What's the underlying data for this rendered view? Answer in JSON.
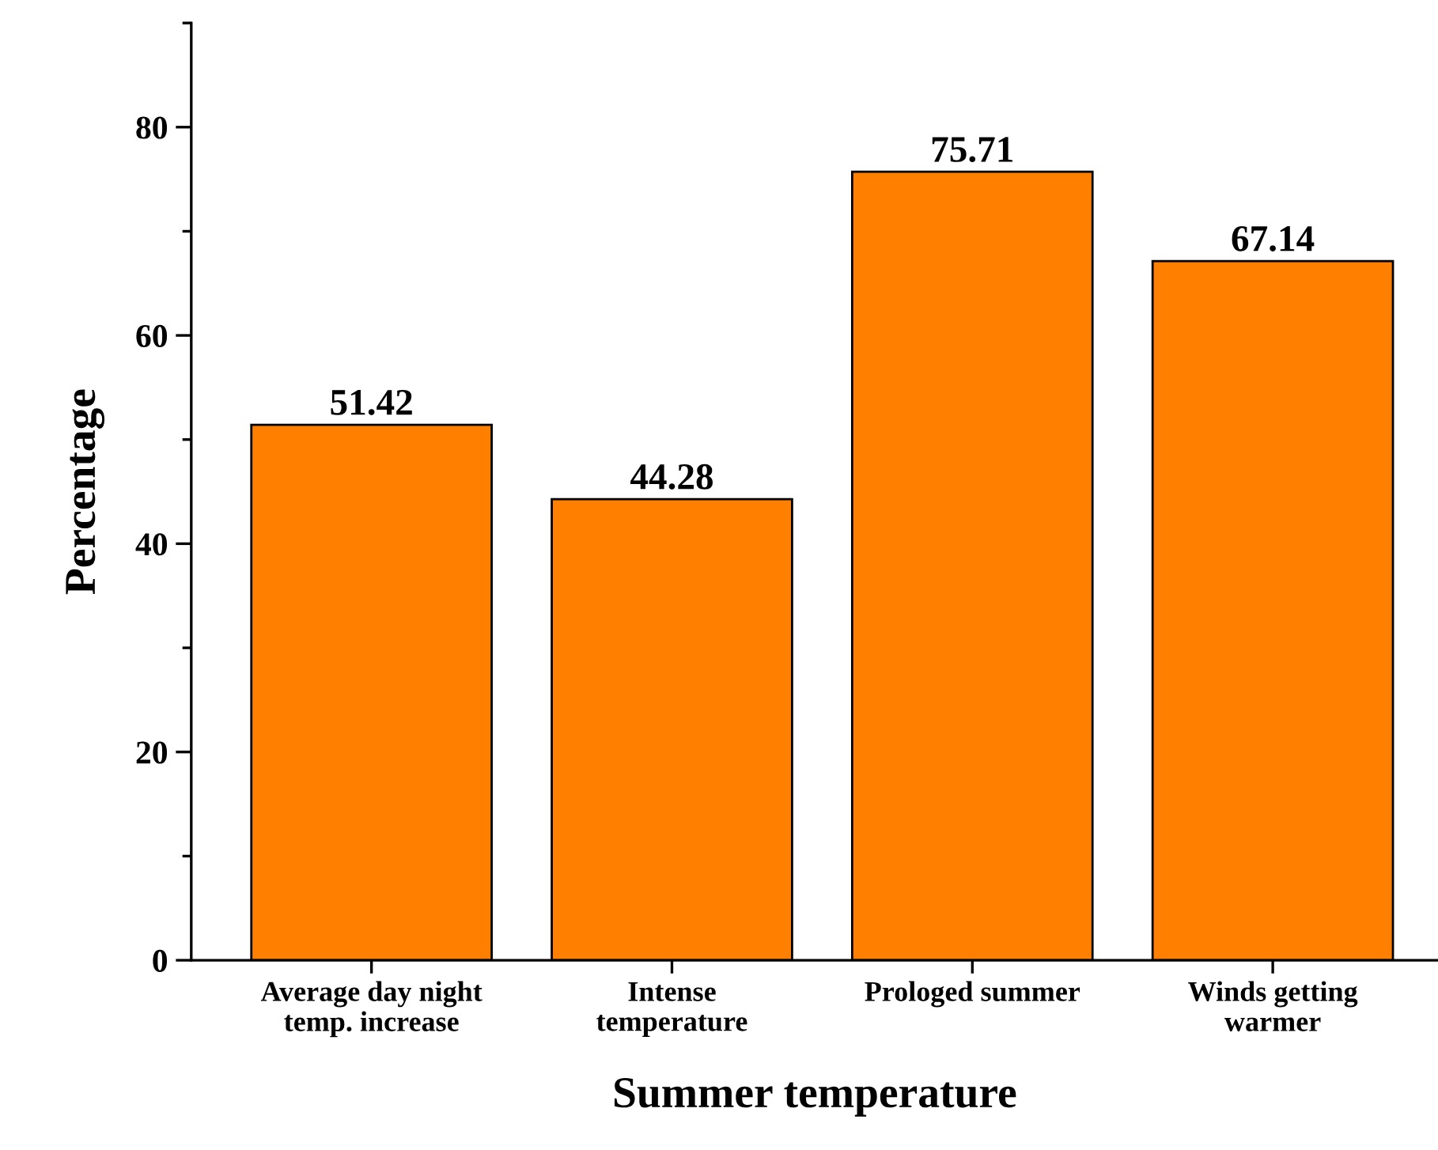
{
  "chart_data": {
    "type": "bar",
    "xlabel": "Summer temperature",
    "ylabel": "Percentage",
    "categories": [
      "Average day night\ntemp. increase",
      "Intense\ntemperature",
      "Prologed summer",
      "Winds getting\nwarmer"
    ],
    "values": [
      51.42,
      44.28,
      75.71,
      67.14
    ],
    "color": "#ff8000",
    "ylim": [
      0,
      90
    ],
    "yticks": [
      0,
      {
        "value": 10,
        "label": null
      },
      20,
      {
        "value": 30,
        "label": null
      },
      40,
      {
        "value": 50,
        "label": null
      },
      60,
      {
        "value": 70,
        "label": null
      },
      80,
      {
        "value": 90,
        "label": null
      }
    ],
    "data_labels": true,
    "grid": false,
    "legend": false
  }
}
